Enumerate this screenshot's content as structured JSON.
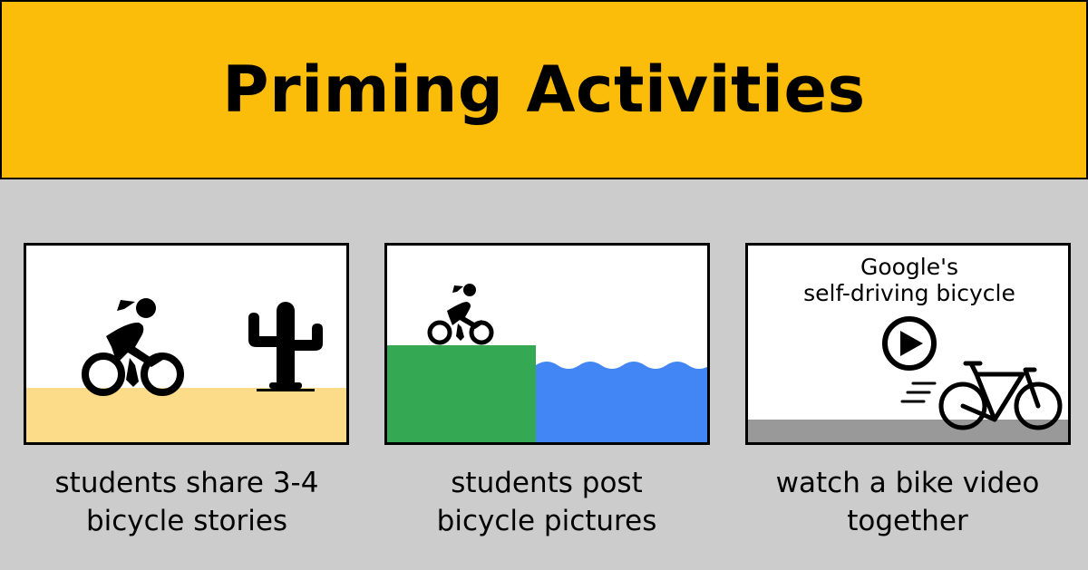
{
  "header": {
    "title": "Priming Activities",
    "background": "#fbbc0a"
  },
  "panels": [
    {
      "caption_line1": "students share 3-4",
      "caption_line2": "bicycle stories",
      "icons": [
        "cyclist-icon",
        "cactus-icon"
      ],
      "colors": {
        "ground": "#fcdc88"
      }
    },
    {
      "caption_line1": "students post",
      "caption_line2": "bicycle pictures",
      "icons": [
        "cyclist-icon"
      ],
      "colors": {
        "land": "#34a853",
        "water": "#4285f4"
      }
    },
    {
      "video_title_line1": "Google's",
      "video_title_line2": "self-driving bicycle",
      "caption_line1": "watch a bike video",
      "caption_line2": "together",
      "icons": [
        "play-icon",
        "bicycle-icon",
        "speed-lines-icon"
      ],
      "colors": {
        "road": "#999999"
      }
    }
  ]
}
